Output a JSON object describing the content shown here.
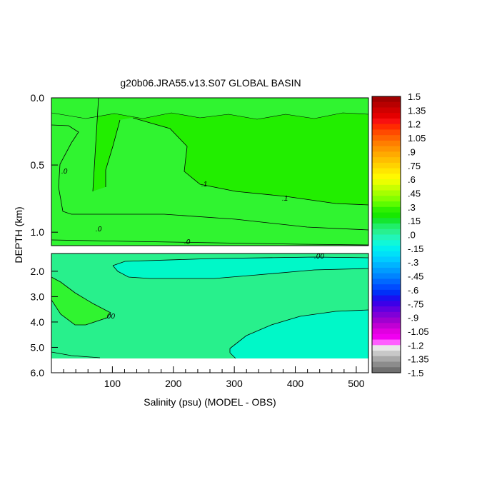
{
  "chart_data": {
    "type": "heatmap",
    "title": "g20b06.JRA55.v13.S07 GLOBAL BASIN",
    "xlabel": "Salinity (psu) (MODEL - OBS)",
    "ylabel": "DEPTH (km)",
    "xlim": [
      0,
      520
    ],
    "x_ticks": [
      "100",
      "200",
      "300",
      "400",
      "500"
    ],
    "x_tick_values": [
      100,
      200,
      300,
      400,
      500
    ],
    "panels": [
      {
        "name": "upper",
        "ylim": [
          0.0,
          1.1
        ],
        "y_ticks": [
          "0.0",
          "0.5",
          "1.0"
        ],
        "y_tick_values": [
          0.0,
          0.5,
          1.0
        ],
        "background_level": "0.0 to 0.15",
        "contours": [
          {
            "level_label": ".0",
            "label_positions": [
              [
                20,
                0.58
              ],
              [
                80,
                1.03
              ],
              [
                225,
                1.09
              ]
            ]
          },
          {
            "level_label": ".1",
            "label_positions": [
              [
                250,
                0.67
              ],
              [
                380,
                0.75
              ]
            ]
          }
        ]
      },
      {
        "name": "lower",
        "ylim": [
          1.3,
          6.0
        ],
        "y_ticks": [
          "2.0",
          "3.0",
          "4.0",
          "5.0",
          "6.0"
        ],
        "y_tick_values": [
          2.0,
          3.0,
          4.0,
          5.0,
          6.0
        ],
        "no_data_below": 5.35,
        "background_level": "0.0 to 0.15",
        "contours": [
          {
            "level_label": ".00",
            "label_positions": [
              [
                440,
                1.4
              ],
              [
                90,
                3.5
              ]
            ]
          }
        ]
      }
    ],
    "colorbar": {
      "levels": [
        "1.5",
        "1.35",
        "1.2",
        "1.05",
        ".9",
        ".75",
        ".6",
        ".45",
        ".3",
        ".15",
        ".0",
        "-.15",
        "-.3",
        "-.45",
        "-.6",
        "-.75",
        "-.9",
        "-1.05",
        "-1.2",
        "-1.35",
        "-1.5"
      ],
      "colors": [
        "#a00000",
        "#b80000",
        "#d00000",
        "#e40000",
        "#f81010",
        "#ff2a00",
        "#ff4a00",
        "#ff6400",
        "#ff7e00",
        "#ff9400",
        "#ffaa00",
        "#ffbe00",
        "#ffd200",
        "#ffe600",
        "#fff800",
        "#eaff00",
        "#c8ff00",
        "#a6ff00",
        "#84ff00",
        "#5cfc00",
        "#2ef000",
        "#18e800",
        "#14e630",
        "#20ee68",
        "#28f090",
        "#22f5b8",
        "#10f8d8",
        "#00f0ee",
        "#00e0f8",
        "#00ccff",
        "#00b4ff",
        "#009cff",
        "#0084ff",
        "#0068ff",
        "#004cff",
        "#0030f8",
        "#1a10f0",
        "#3c00e8",
        "#6000e0",
        "#8000d8",
        "#a000d0",
        "#c000d4",
        "#e000e0",
        "#f000f0",
        "#ff60ff",
        "#e8e8e8",
        "#c8c8c8",
        "#a8a8a8",
        "#8c8c8c",
        "#707070"
      ]
    },
    "fill_colors": {
      "bright_green": "#22ee00",
      "mid_green": "#30f430",
      "light_green": "#28f08c",
      "aqua": "#00f8c8"
    }
  }
}
